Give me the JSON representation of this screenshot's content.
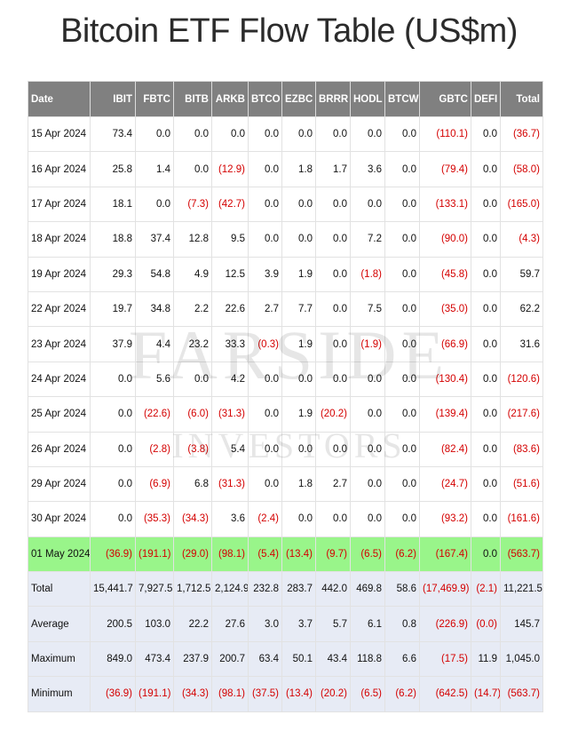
{
  "title": "Bitcoin ETF Flow Table (US$m)",
  "watermark": {
    "line1": "FARSIDE",
    "line2": "INVESTORS"
  },
  "columns": [
    "Date",
    "IBIT",
    "FBTC",
    "BITB",
    "ARKB",
    "BTCO",
    "EZBC",
    "BRRR",
    "HODL",
    "BTCW",
    "GBTC",
    "DEFI",
    "Total"
  ],
  "rows": [
    [
      "15 Apr 2024",
      "73.4",
      "0.0",
      "0.0",
      "0.0",
      "0.0",
      "0.0",
      "0.0",
      "0.0",
      "0.0",
      "(110.1)",
      "0.0",
      "(36.7)"
    ],
    [
      "16 Apr 2024",
      "25.8",
      "1.4",
      "0.0",
      "(12.9)",
      "0.0",
      "1.8",
      "1.7",
      "3.6",
      "0.0",
      "(79.4)",
      "0.0",
      "(58.0)"
    ],
    [
      "17 Apr 2024",
      "18.1",
      "0.0",
      "(7.3)",
      "(42.7)",
      "0.0",
      "0.0",
      "0.0",
      "0.0",
      "0.0",
      "(133.1)",
      "0.0",
      "(165.0)"
    ],
    [
      "18 Apr 2024",
      "18.8",
      "37.4",
      "12.8",
      "9.5",
      "0.0",
      "0.0",
      "0.0",
      "7.2",
      "0.0",
      "(90.0)",
      "0.0",
      "(4.3)"
    ],
    [
      "19 Apr 2024",
      "29.3",
      "54.8",
      "4.9",
      "12.5",
      "3.9",
      "1.9",
      "0.0",
      "(1.8)",
      "0.0",
      "(45.8)",
      "0.0",
      "59.7"
    ],
    [
      "22 Apr 2024",
      "19.7",
      "34.8",
      "2.2",
      "22.6",
      "2.7",
      "7.7",
      "0.0",
      "7.5",
      "0.0",
      "(35.0)",
      "0.0",
      "62.2"
    ],
    [
      "23 Apr 2024",
      "37.9",
      "4.4",
      "23.2",
      "33.3",
      "(0.3)",
      "1.9",
      "0.0",
      "(1.9)",
      "0.0",
      "(66.9)",
      "0.0",
      "31.6"
    ],
    [
      "24 Apr 2024",
      "0.0",
      "5.6",
      "0.0",
      "4.2",
      "0.0",
      "0.0",
      "0.0",
      "0.0",
      "0.0",
      "(130.4)",
      "0.0",
      "(120.6)"
    ],
    [
      "25 Apr 2024",
      "0.0",
      "(22.6)",
      "(6.0)",
      "(31.3)",
      "0.0",
      "1.9",
      "(20.2)",
      "0.0",
      "0.0",
      "(139.4)",
      "0.0",
      "(217.6)"
    ],
    [
      "26 Apr 2024",
      "0.0",
      "(2.8)",
      "(3.8)",
      "5.4",
      "0.0",
      "0.0",
      "0.0",
      "0.0",
      "0.0",
      "(82.4)",
      "0.0",
      "(83.6)"
    ],
    [
      "29 Apr 2024",
      "0.0",
      "(6.9)",
      "6.8",
      "(31.3)",
      "0.0",
      "1.8",
      "2.7",
      "0.0",
      "0.0",
      "(24.7)",
      "0.0",
      "(51.6)"
    ],
    [
      "30 Apr 2024",
      "0.0",
      "(35.3)",
      "(34.3)",
      "3.6",
      "(2.4)",
      "0.0",
      "0.0",
      "0.0",
      "0.0",
      "(93.2)",
      "0.0",
      "(161.6)"
    ],
    [
      "01 May 2024",
      "(36.9)",
      "(191.1)",
      "(29.0)",
      "(98.1)",
      "(5.4)",
      "(13.4)",
      "(9.7)",
      "(6.5)",
      "(6.2)",
      "(167.4)",
      "0.0",
      "(563.7)"
    ]
  ],
  "highlight_row_index": 12,
  "summary_rows": [
    [
      "Total",
      "15,441.7",
      "7,927.5",
      "1,712.5",
      "2,124.9",
      "232.8",
      "283.7",
      "442.0",
      "469.8",
      "58.6",
      "(17,469.9)",
      "(2.1)",
      "11,221.5"
    ],
    [
      "Average",
      "200.5",
      "103.0",
      "22.2",
      "27.6",
      "3.0",
      "3.7",
      "5.7",
      "6.1",
      "0.8",
      "(226.9)",
      "(0.0)",
      "145.7"
    ],
    [
      "Maximum",
      "849.0",
      "473.4",
      "237.9",
      "200.7",
      "63.4",
      "50.1",
      "43.4",
      "118.8",
      "6.6",
      "(17.5)",
      "11.9",
      "1,045.0"
    ],
    [
      "Minimum",
      "(36.9)",
      "(191.1)",
      "(34.3)",
      "(98.1)",
      "(37.5)",
      "(13.4)",
      "(20.2)",
      "(6.5)",
      "(6.2)",
      "(642.5)",
      "(14.7)",
      "(563.7)"
    ]
  ],
  "colors": {
    "header_bg": "#808080",
    "highlight_bg": "#99f58a",
    "summary_bg": "#e7ebf5",
    "negative": "#d40000"
  }
}
